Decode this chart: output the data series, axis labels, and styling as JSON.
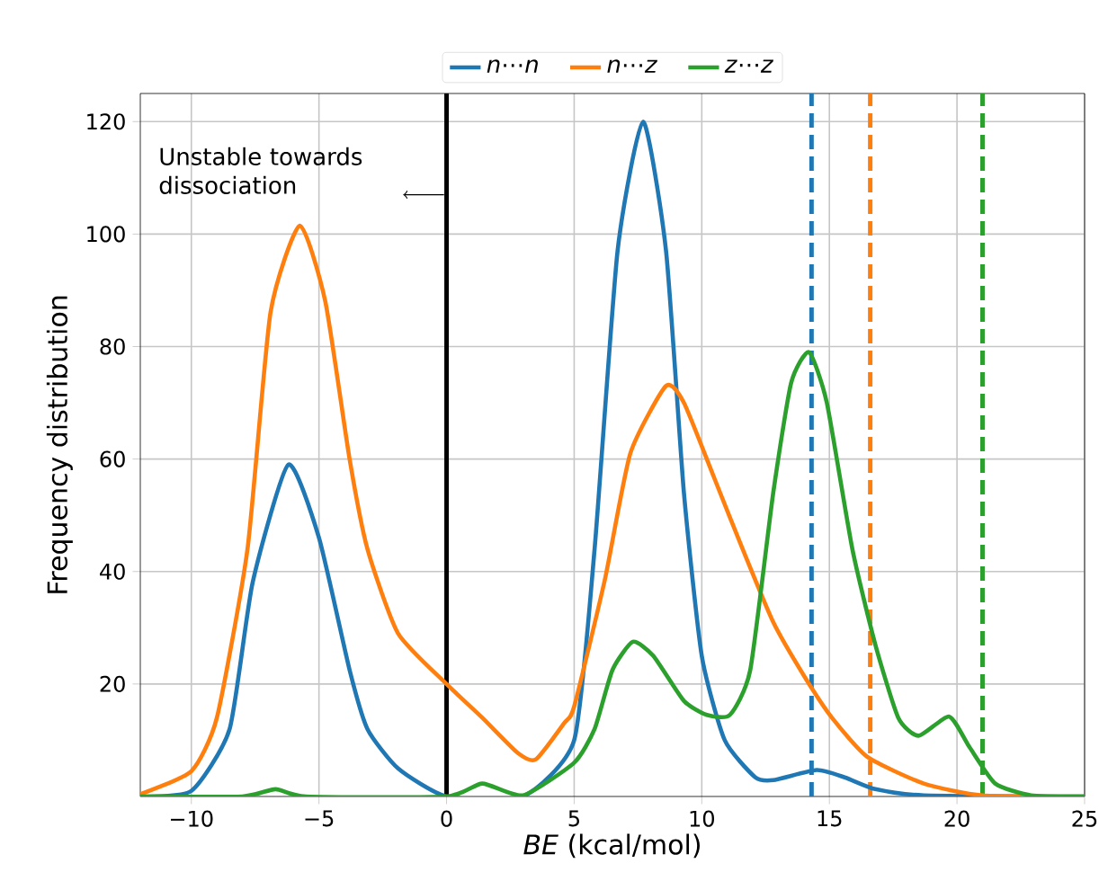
{
  "chart_data": {
    "type": "line",
    "xlabel": "*BE* (kcal/mol)",
    "ylabel": "Frequency distribution",
    "xlim": [
      -12,
      25
    ],
    "ylim": [
      0,
      125
    ],
    "xticks": [
      {
        "value": -10,
        "label": "−10"
      },
      {
        "value": -5,
        "label": "−5"
      },
      0,
      5,
      10,
      15,
      20,
      25
    ],
    "yticks": [
      20,
      40,
      60,
      80,
      100,
      120
    ],
    "grid": true,
    "legend": "top",
    "marker": "none",
    "line_style": "solid",
    "series": [
      {
        "name": "*n*⋯*n*",
        "color": "#1f77b4",
        "x": [
          -12,
          -10,
          -8.5,
          -7.6,
          -6.2,
          -5.0,
          -3.8,
          -3.1,
          -1.9,
          0,
          3.0,
          5,
          5.8,
          6.7,
          7.7,
          8.6,
          9.3,
          10,
          10.9,
          12.1,
          12.8,
          14.5,
          15.6,
          16.8,
          18.7,
          25
        ],
        "values": [
          0,
          1,
          12,
          38,
          59,
          46,
          22.5,
          12,
          5,
          0,
          0,
          10,
          44,
          97,
          120,
          97,
          54,
          25,
          10,
          3.4,
          2.9,
          4.7,
          3.4,
          1.3,
          0.2,
          0
        ]
      },
      {
        "name": "*n*⋯*z*",
        "color": "#ff7f0e",
        "x": [
          -12,
          -10,
          -9,
          -7.8,
          -6.9,
          -5.75,
          -4.75,
          -3.8,
          -3.1,
          -1.9,
          0,
          1.4,
          2.8,
          3.5,
          4.6,
          5,
          6.2,
          7.2,
          8.6,
          9.3,
          10.5,
          11.6,
          12.8,
          14,
          15.1,
          16.5,
          18.7,
          21,
          25
        ],
        "values": [
          0.4,
          4.5,
          14,
          44,
          86,
          101.5,
          88,
          60,
          44,
          29,
          20,
          14,
          7.7,
          6.6,
          13,
          16,
          38.5,
          61,
          73,
          70,
          56.5,
          44,
          31,
          21.5,
          14,
          7,
          2.3,
          0.2,
          0
        ]
      },
      {
        "name": "*z*⋯*z*",
        "color": "#2ca02c",
        "x": [
          -12,
          -8,
          -6.7,
          -5.5,
          0,
          1.4,
          3.0,
          5,
          5.8,
          6.5,
          7.3,
          8.1,
          9.3,
          10.2,
          11.1,
          11.9,
          12.8,
          13.5,
          14.2,
          14.9,
          15.9,
          16.8,
          17.7,
          18.5,
          19.7,
          20.5,
          21.5,
          22.9,
          25
        ],
        "values": [
          0,
          0,
          1.3,
          0,
          0,
          2.3,
          0.2,
          6,
          12,
          22.5,
          27.5,
          25,
          17,
          14.5,
          14.5,
          22.5,
          54,
          73.5,
          79,
          70,
          44,
          27,
          14,
          10.8,
          14.2,
          8.7,
          2.3,
          0.2,
          0
        ]
      }
    ],
    "ref_lines": [
      {
        "axis": "x",
        "value": 0,
        "color": "#000000",
        "line_style": "solid"
      },
      {
        "axis": "x",
        "value": 14.3,
        "color": "#1f77b4",
        "line_style": "dashed"
      },
      {
        "axis": "x",
        "value": 16.6,
        "color": "#ff7f0e",
        "line_style": "dashed"
      },
      {
        "axis": "x",
        "value": 21.0,
        "color": "#2ca02c",
        "line_style": "dashed"
      }
    ],
    "annotations": [
      "Unstable towards dissociation"
    ]
  }
}
